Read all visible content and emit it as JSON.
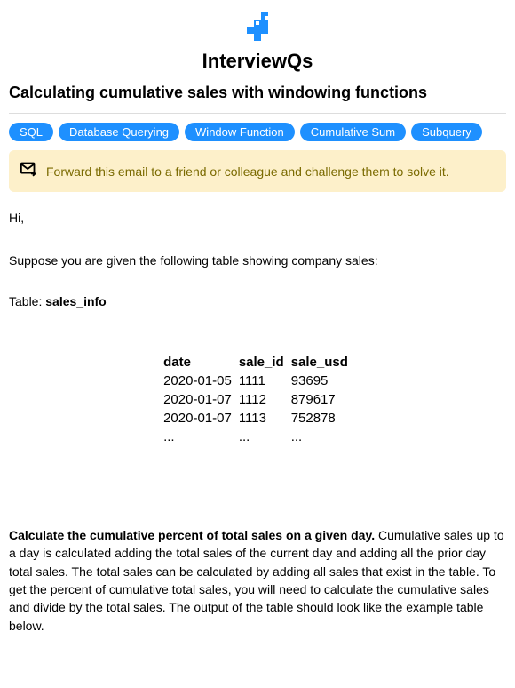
{
  "brand": {
    "name": "InterviewQs",
    "logo_color": "#1e90ff"
  },
  "title": "Calculating cumulative sales with windowing functions",
  "tags": [
    "SQL",
    "Database Querying",
    "Window Function",
    "Cumulative Sum",
    "Subquery"
  ],
  "tag_style": {
    "background_color": "#1e90ff",
    "text_color": "#ffffff"
  },
  "forward": {
    "text": "Forward this email to a friend or colleague and challenge them to solve it.",
    "background_color": "#fdf0ca",
    "text_color": "#7a6a00"
  },
  "greeting": "Hi,",
  "intro": "Suppose you are given the following table showing company sales:",
  "table_label_prefix": "Table: ",
  "table_name": "sales_info",
  "table": {
    "columns": [
      "date",
      "sale_id",
      "sale_usd"
    ],
    "rows": [
      [
        "2020-01-05",
        "1111",
        "93695"
      ],
      [
        "2020-01-07",
        "1112",
        "879617"
      ],
      [
        "2020-01-07",
        "1113",
        "752878"
      ],
      [
        "...",
        "...",
        "..."
      ]
    ]
  },
  "instruction_bold": "Calculate the cumulative percent of total sales on a given day.",
  "instruction_rest": " Cumulative sales up to a day is calculated adding the total sales of the current day and adding all the prior day total sales. The total sales can be calculated by adding all sales that exist in the table. To get the percent of cumulative total sales, you will need to calculate the cumulative sales and divide by the total sales. The output of the table should look like the example table below."
}
